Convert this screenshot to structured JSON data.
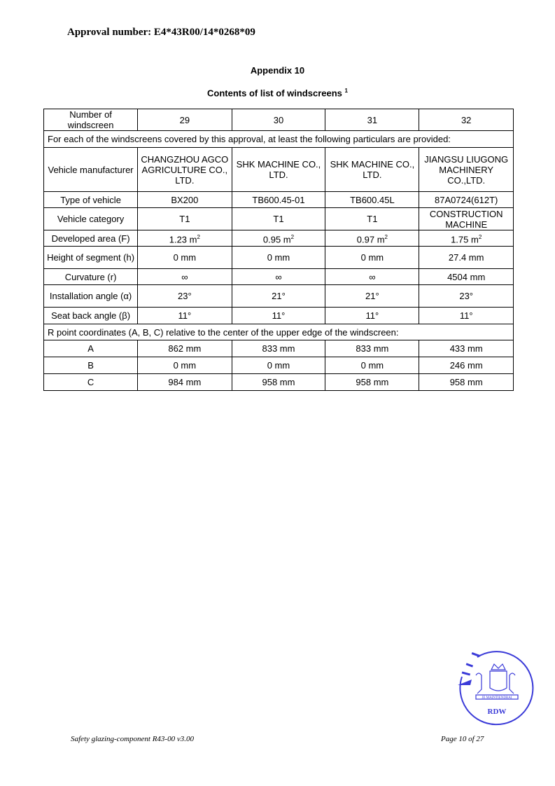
{
  "header": {
    "approval_number": "Approval number: E4*43R00/14*0268*09"
  },
  "appendix_title": "Appendix 10",
  "list_title": "Contents of list of windscreens",
  "list_title_footnote": "1",
  "table": {
    "number_label": "Number of windscreen",
    "numbers": [
      "29",
      "30",
      "31",
      "32"
    ],
    "intro": "For each of the windscreens covered by this approval, at least the following particulars are provided:",
    "rows": [
      {
        "label": "Vehicle manufacturer",
        "values": [
          "CHANGZHOU AGCO AGRICULTURE CO., LTD.",
          "SHK MACHINE CO., LTD.",
          "SHK MACHINE CO., LTD.",
          "JIANGSU LIUGONG MACHINERY CO.,LTD."
        ]
      },
      {
        "label": "Type of vehicle",
        "values": [
          "BX200",
          "TB600.45-01",
          "TB600.45L",
          "87A0724(612T)"
        ]
      },
      {
        "label": "Vehicle category",
        "values": [
          "T1",
          "T1",
          "T1",
          "CONSTRUCTION MACHINE"
        ]
      },
      {
        "label": "Developed area (F)",
        "values": [
          "1.23 m",
          "0.95 m",
          "0.97 m",
          "1.75 m"
        ],
        "unit_sup": "2"
      },
      {
        "label": "Height of segment (h)",
        "values": [
          "0 mm",
          "0 mm",
          "0 mm",
          "27.4 mm"
        ]
      },
      {
        "label": "Curvature (r)",
        "values": [
          "∞",
          "∞",
          "∞",
          "4504 mm"
        ]
      },
      {
        "label": "Installation angle (α)",
        "values": [
          "23°",
          "21°",
          "21°",
          "23°"
        ]
      },
      {
        "label": "Seat back angle (β)",
        "values": [
          "11°",
          "11°",
          "11°",
          "11°"
        ]
      }
    ],
    "r_point_intro": "R point coordinates (A, B, C) relative to the center of the upper edge of the windscreen:",
    "r_rows": [
      {
        "label": "A",
        "values": [
          "862 mm",
          "833 mm",
          "833 mm",
          "433 mm"
        ]
      },
      {
        "label": "B",
        "values": [
          "0 mm",
          "0 mm",
          "0 mm",
          "246 mm"
        ]
      },
      {
        "label": "C",
        "values": [
          "984 mm",
          "958 mm",
          "958 mm",
          "958 mm"
        ]
      }
    ]
  },
  "stamp": {
    "motto": "JE MAINTIENDRAI",
    "text": "RDW",
    "color": "#3a3ad8"
  },
  "footer": {
    "left": "Safety glazing-component R43-00 v3.00",
    "right": "Page 10 of 27"
  }
}
